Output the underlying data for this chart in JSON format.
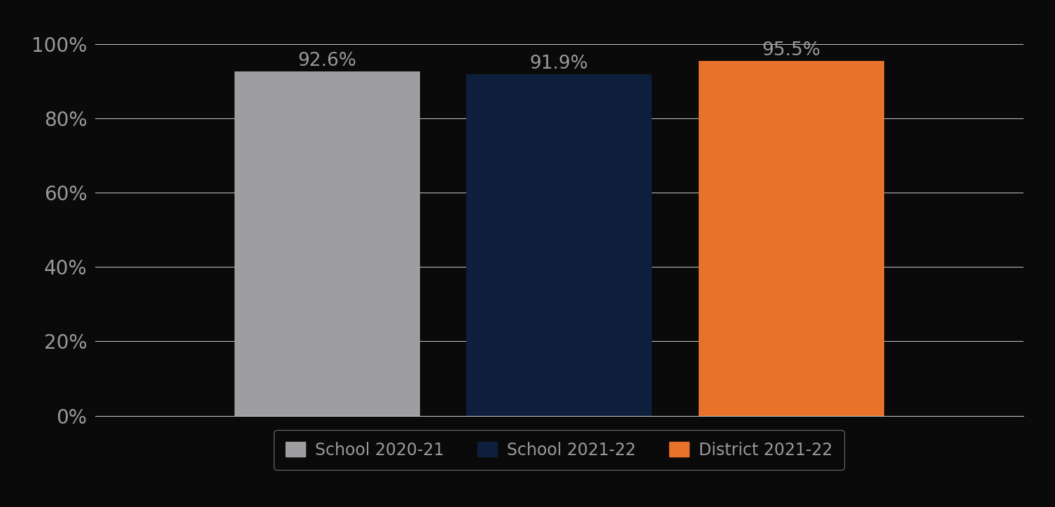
{
  "categories": [
    "School 2020-21",
    "School 2021-22",
    "District 2021-22"
  ],
  "values": [
    0.926,
    0.919,
    0.955
  ],
  "bar_colors": [
    "#9E9EA0",
    "#0D1F3C",
    "#E8722A"
  ],
  "value_labels": [
    "92.6%",
    "91.9%",
    "95.5%"
  ],
  "ylim": [
    0,
    1.05
  ],
  "yticks": [
    0.0,
    0.2,
    0.4,
    0.6,
    0.8,
    1.0
  ],
  "yticklabels": [
    "0%",
    "20%",
    "40%",
    "60%",
    "80%",
    "100%"
  ],
  "background_color": "#0A0A0A",
  "text_color": "#999999",
  "grid_color": "#CCCCCC",
  "label_fontsize": 19,
  "tick_fontsize": 20,
  "legend_fontsize": 17,
  "bar_width": 0.16,
  "bar_positions": [
    0.3,
    0.5,
    0.7
  ],
  "xlim": [
    0.1,
    0.9
  ]
}
